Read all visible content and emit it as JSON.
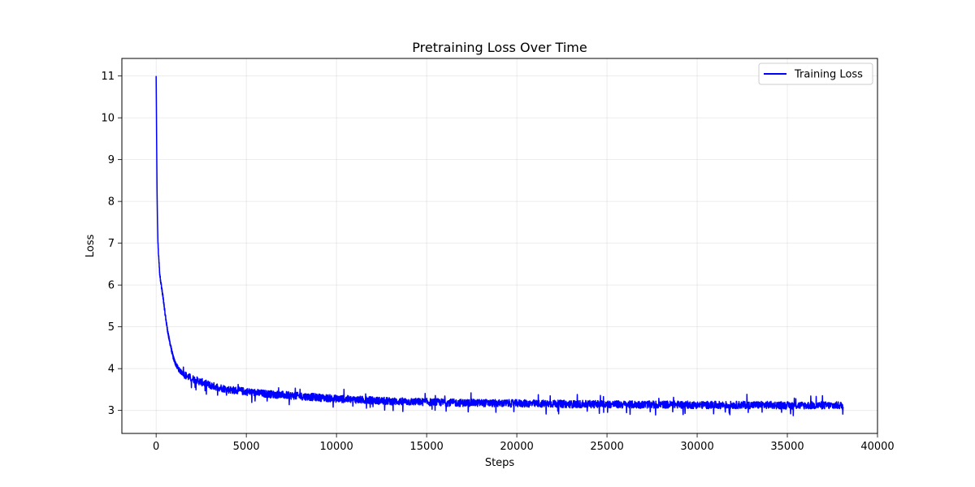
{
  "chart_data": {
    "type": "line",
    "title": "Pretraining Loss Over Time",
    "xlabel": "Steps",
    "ylabel": "Loss",
    "xlim": [
      -1900,
      40000
    ],
    "ylim": [
      2.45,
      11.42
    ],
    "xticks": [
      0,
      5000,
      10000,
      15000,
      20000,
      25000,
      30000,
      35000,
      40000
    ],
    "yticks": [
      3,
      4,
      5,
      6,
      7,
      8,
      9,
      10,
      11
    ],
    "grid": true,
    "legend": {
      "position": "top-right"
    },
    "series": [
      {
        "name": "Training Loss",
        "color": "#0000ff",
        "noise": 0.09,
        "x": [
          0,
          25,
          50,
          75,
          100,
          150,
          200,
          300,
          400,
          500,
          600,
          700,
          800,
          900,
          1000,
          1100,
          1200,
          1300,
          1500,
          1700,
          2000,
          2500,
          3000,
          3500,
          4000,
          5000,
          6000,
          7000,
          8000,
          9000,
          10000,
          11000,
          12000,
          13000,
          14000,
          15000,
          16000,
          17000,
          18000,
          19000,
          20000,
          21000,
          22000,
          23000,
          24000,
          25000,
          26000,
          27000,
          28000,
          29000,
          30000,
          31000,
          32000,
          33000,
          34000,
          35000,
          36000,
          37000,
          38100
        ],
        "y": [
          11.0,
          9.6,
          8.3,
          7.5,
          7.0,
          6.6,
          6.25,
          5.95,
          5.65,
          5.3,
          5.0,
          4.75,
          4.55,
          4.35,
          4.2,
          4.1,
          4.02,
          3.95,
          3.88,
          3.82,
          3.76,
          3.68,
          3.6,
          3.55,
          3.5,
          3.45,
          3.4,
          3.37,
          3.34,
          3.31,
          3.28,
          3.26,
          3.24,
          3.22,
          3.21,
          3.2,
          3.19,
          3.18,
          3.18,
          3.17,
          3.17,
          3.16,
          3.16,
          3.15,
          3.15,
          3.15,
          3.14,
          3.14,
          3.14,
          3.14,
          3.13,
          3.13,
          3.13,
          3.13,
          3.13,
          3.12,
          3.12,
          3.12,
          3.12
        ]
      }
    ]
  }
}
